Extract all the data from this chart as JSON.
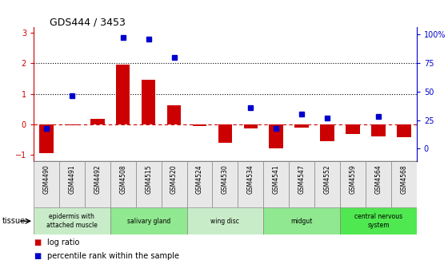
{
  "title": "GDS444 / 3453",
  "samples": [
    "GSM4490",
    "GSM4491",
    "GSM4492",
    "GSM4508",
    "GSM4515",
    "GSM4520",
    "GSM4524",
    "GSM4530",
    "GSM4534",
    "GSM4541",
    "GSM4547",
    "GSM4552",
    "GSM4559",
    "GSM4564",
    "GSM4568"
  ],
  "log_ratio": [
    -0.95,
    -0.03,
    0.17,
    1.97,
    1.45,
    0.62,
    -0.05,
    -0.62,
    -0.13,
    -0.8,
    -0.12,
    -0.55,
    -0.32,
    -0.4,
    -0.42
  ],
  "percentile": [
    18,
    46,
    null,
    97,
    96,
    80,
    null,
    null,
    36,
    18,
    30,
    27,
    null,
    28,
    null
  ],
  "tissues": [
    {
      "label": "epidermis with\nattached muscle",
      "start": 0,
      "end": 3,
      "color": "#c8ecc8"
    },
    {
      "label": "salivary gland",
      "start": 3,
      "end": 6,
      "color": "#90e890"
    },
    {
      "label": "wing disc",
      "start": 6,
      "end": 9,
      "color": "#c8ecc8"
    },
    {
      "label": "midgut",
      "start": 9,
      "end": 12,
      "color": "#90e890"
    },
    {
      "label": "central nervous\nsystem",
      "start": 12,
      "end": 15,
      "color": "#50e850"
    }
  ],
  "bar_color": "#cc0000",
  "dot_color": "#0000cc",
  "ylim_left": [
    -1.2,
    3.2
  ],
  "ylim_right": [
    -10.67,
    106.67
  ],
  "yticks_left": [
    -1,
    0,
    1,
    2,
    3
  ],
  "yticks_right": [
    0,
    25,
    50,
    75,
    100
  ],
  "ytick_labels_right": [
    "0",
    "25",
    "50",
    "75",
    "100%"
  ],
  "dotted_lines": [
    1,
    2
  ],
  "bg_color": "#ffffff"
}
